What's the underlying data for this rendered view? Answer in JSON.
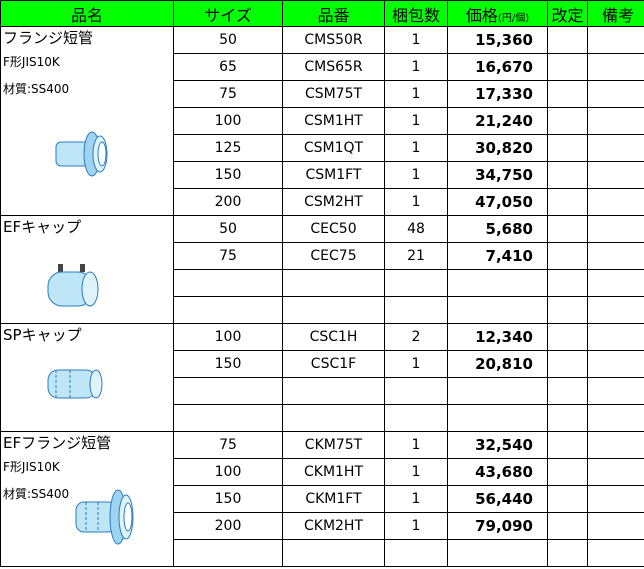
{
  "table": {
    "columns": [
      "品名",
      "サイズ",
      "品番",
      "梱包数",
      "価格",
      "改定",
      "備考"
    ],
    "price_unit": "(円/個)",
    "groups": [
      {
        "name": "フランジ短管",
        "specs": [
          "F形JIS10K",
          "材質:SS400"
        ],
        "rows": [
          [
            "50",
            "CMS50R",
            "1",
            "15,360"
          ],
          [
            "65",
            "CMS65R",
            "1",
            "16,670"
          ],
          [
            "75",
            "CSM75T",
            "1",
            "17,330"
          ],
          [
            "100",
            "CSM1HT",
            "1",
            "21,240"
          ],
          [
            "125",
            "CSM1QT",
            "1",
            "30,820"
          ],
          [
            "150",
            "CSM1FT",
            "1",
            "34,750"
          ],
          [
            "200",
            "CSM2HT",
            "1",
            "47,050"
          ]
        ]
      },
      {
        "name": "EFキャップ",
        "specs": [],
        "rows": [
          [
            "50",
            "CEC50",
            "48",
            "5,680"
          ],
          [
            "75",
            "CEC75",
            "21",
            "7,410"
          ],
          null,
          null
        ]
      },
      {
        "name": "SPキャップ",
        "specs": [],
        "rows": [
          [
            "100",
            "CSC1H",
            "2",
            "12,340"
          ],
          [
            "150",
            "CSC1F",
            "1",
            "20,810"
          ],
          null,
          null
        ]
      },
      {
        "name": "EFフランジ短管",
        "specs": [
          "F形JIS10K",
          "材質:SS400"
        ],
        "rows": [
          [
            "75",
            "CKM75T",
            "1",
            "32,540"
          ],
          [
            "100",
            "CKM1HT",
            "1",
            "43,680"
          ],
          [
            "150",
            "CKM1FT",
            "1",
            "56,440"
          ],
          [
            "200",
            "CKM2HT",
            "1",
            "79,090"
          ],
          null
        ]
      }
    ]
  }
}
